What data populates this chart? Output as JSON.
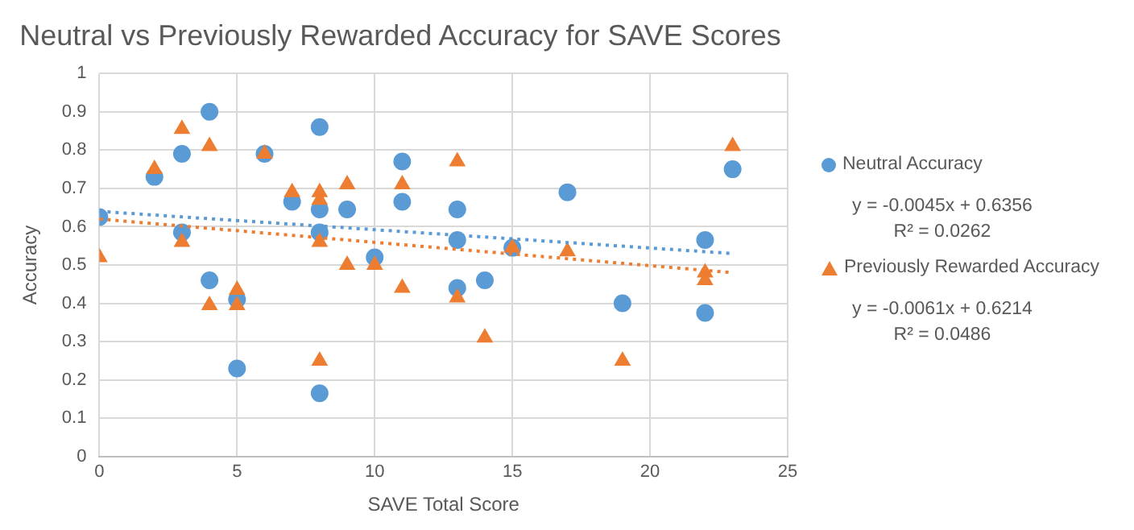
{
  "chart_data": {
    "type": "scatter",
    "title": "Neutral vs Previously Rewarded Accuracy for SAVE Scores",
    "xlabel": "SAVE Total Score",
    "ylabel": "Accuracy",
    "xlim": [
      0,
      25
    ],
    "xticks": [
      0,
      5,
      10,
      15,
      20,
      25
    ],
    "ylim": [
      0,
      1
    ],
    "yticks": [
      0,
      0.1,
      0.2,
      0.3,
      0.4,
      0.5,
      0.6,
      0.7,
      0.8,
      0.9,
      1
    ],
    "grid": true,
    "legend": "right",
    "series": [
      {
        "name": "Neutral Accuracy",
        "color": "#5b9bd5",
        "marker": "circle",
        "x": [
          0,
          2,
          3,
          3,
          4,
          4,
          5,
          5,
          6,
          7,
          8,
          8,
          8,
          8,
          9,
          10,
          11,
          11,
          13,
          13,
          13,
          14,
          15,
          17,
          19,
          22,
          22,
          23
        ],
        "values": [
          0.625,
          0.73,
          0.79,
          0.585,
          0.9,
          0.46,
          0.41,
          0.23,
          0.79,
          0.665,
          0.86,
          0.645,
          0.585,
          0.165,
          0.645,
          0.52,
          0.77,
          0.665,
          0.645,
          0.565,
          0.44,
          0.46,
          0.545,
          0.69,
          0.4,
          0.565,
          0.375,
          0.75
        ]
      },
      {
        "name": "Previously Rewarded Accuracy",
        "color": "#ed7d31",
        "marker": "triangle",
        "x": [
          0,
          2,
          3,
          3,
          4,
          4,
          5,
          5,
          6,
          7,
          8,
          8,
          8,
          8,
          9,
          9,
          10,
          11,
          11,
          13,
          13,
          14,
          15,
          17,
          19,
          22,
          22,
          23
        ],
        "values": [
          0.52,
          0.75,
          0.855,
          0.56,
          0.81,
          0.395,
          0.435,
          0.395,
          0.79,
          0.69,
          0.69,
          0.67,
          0.56,
          0.25,
          0.71,
          0.5,
          0.5,
          0.71,
          0.44,
          0.77,
          0.415,
          0.31,
          0.545,
          0.535,
          0.25,
          0.48,
          0.46,
          0.81
        ]
      },
      {
        "type": "line",
        "color": "#5b9bd5",
        "marker": "none",
        "line_style": "dotted",
        "x": [
          0,
          23
        ],
        "values": [
          0.64,
          0.53
        ]
      },
      {
        "type": "line",
        "color": "#ed7d31",
        "marker": "none",
        "line_style": "dotted",
        "x": [
          0,
          23
        ],
        "values": [
          0.62,
          0.48
        ]
      }
    ],
    "annotations": [
      "y = -0.0045x + 0.6356",
      "R² = 0.0262",
      "y = -0.0061x + 0.6214",
      "R² = 0.0486"
    ]
  }
}
